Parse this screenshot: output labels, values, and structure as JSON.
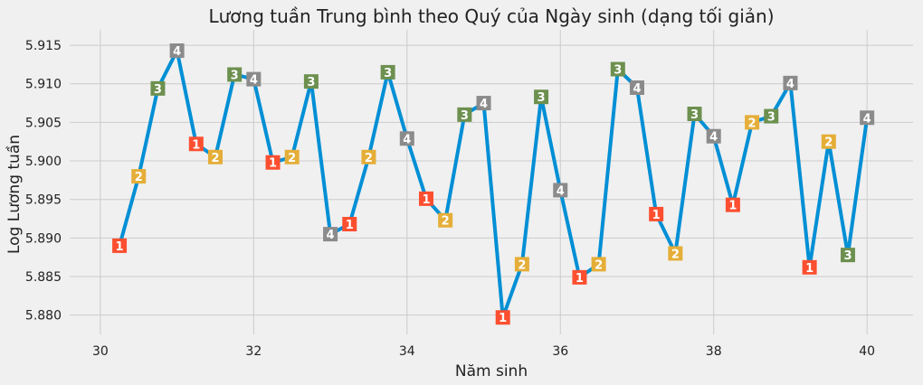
{
  "chart_data": {
    "type": "line",
    "title": "Lương tuần Trung bình theo Quý của Ngày sinh (dạng tối giản)",
    "xlabel": "Năm sinh",
    "ylabel": "Log Lương tuần",
    "xlim": [
      29.6,
      40.6
    ],
    "ylim": [
      5.8775,
      5.917
    ],
    "xticks": [
      30,
      32,
      34,
      36,
      38,
      40
    ],
    "yticks": [
      5.88,
      5.885,
      5.89,
      5.895,
      5.9,
      5.905,
      5.91,
      5.915
    ],
    "xtick_labels": [
      "30",
      "32",
      "34",
      "36",
      "38",
      "40"
    ],
    "ytick_labels": [
      "5.880",
      "5.885",
      "5.890",
      "5.895",
      "5.900",
      "5.905",
      "5.910",
      "5.915"
    ],
    "grid": true,
    "line_color": "#008fd5",
    "quarter_colors": {
      "1": "#fc4f30",
      "2": "#e5ae38",
      "3": "#6d904f",
      "4": "#8b8b8b"
    },
    "points": [
      {
        "x": 30.25,
        "y": 5.889,
        "q": "1"
      },
      {
        "x": 30.5,
        "y": 5.898,
        "q": "2"
      },
      {
        "x": 30.75,
        "y": 5.9094,
        "q": "3"
      },
      {
        "x": 31.0,
        "y": 5.9143,
        "q": "4"
      },
      {
        "x": 31.25,
        "y": 5.9022,
        "q": "1"
      },
      {
        "x": 31.5,
        "y": 5.9005,
        "q": "2"
      },
      {
        "x": 31.75,
        "y": 5.9112,
        "q": "3"
      },
      {
        "x": 32.0,
        "y": 5.9106,
        "q": "4"
      },
      {
        "x": 32.25,
        "y": 5.8998,
        "q": "1"
      },
      {
        "x": 32.5,
        "y": 5.9005,
        "q": "2"
      },
      {
        "x": 32.75,
        "y": 5.9103,
        "q": "3"
      },
      {
        "x": 33.0,
        "y": 5.8905,
        "q": "4"
      },
      {
        "x": 33.25,
        "y": 5.8918,
        "q": "1"
      },
      {
        "x": 33.5,
        "y": 5.9005,
        "q": "2"
      },
      {
        "x": 33.75,
        "y": 5.9115,
        "q": "3"
      },
      {
        "x": 34.0,
        "y": 5.9029,
        "q": "4"
      },
      {
        "x": 34.25,
        "y": 5.8951,
        "q": "1"
      },
      {
        "x": 34.5,
        "y": 5.8923,
        "q": "2"
      },
      {
        "x": 34.75,
        "y": 5.906,
        "q": "3"
      },
      {
        "x": 35.0,
        "y": 5.9075,
        "q": "4"
      },
      {
        "x": 35.25,
        "y": 5.8797,
        "q": "1"
      },
      {
        "x": 35.5,
        "y": 5.8866,
        "q": "2"
      },
      {
        "x": 35.75,
        "y": 5.9083,
        "q": "3"
      },
      {
        "x": 36.0,
        "y": 5.8962,
        "q": "4"
      },
      {
        "x": 36.25,
        "y": 5.8849,
        "q": "1"
      },
      {
        "x": 36.5,
        "y": 5.8866,
        "q": "2"
      },
      {
        "x": 36.75,
        "y": 5.9119,
        "q": "3"
      },
      {
        "x": 37.0,
        "y": 5.9095,
        "q": "4"
      },
      {
        "x": 37.25,
        "y": 5.8931,
        "q": "1"
      },
      {
        "x": 37.5,
        "y": 5.888,
        "q": "2"
      },
      {
        "x": 37.75,
        "y": 5.9061,
        "q": "3"
      },
      {
        "x": 38.0,
        "y": 5.9032,
        "q": "4"
      },
      {
        "x": 38.25,
        "y": 5.8943,
        "q": "1"
      },
      {
        "x": 38.5,
        "y": 5.905,
        "q": "2"
      },
      {
        "x": 38.75,
        "y": 5.9058,
        "q": "3"
      },
      {
        "x": 39.0,
        "y": 5.9101,
        "q": "4"
      },
      {
        "x": 39.25,
        "y": 5.8862,
        "q": "1"
      },
      {
        "x": 39.5,
        "y": 5.9025,
        "q": "2"
      },
      {
        "x": 39.75,
        "y": 5.8878,
        "q": "3"
      },
      {
        "x": 40.0,
        "y": 5.9056,
        "q": "4"
      }
    ]
  }
}
